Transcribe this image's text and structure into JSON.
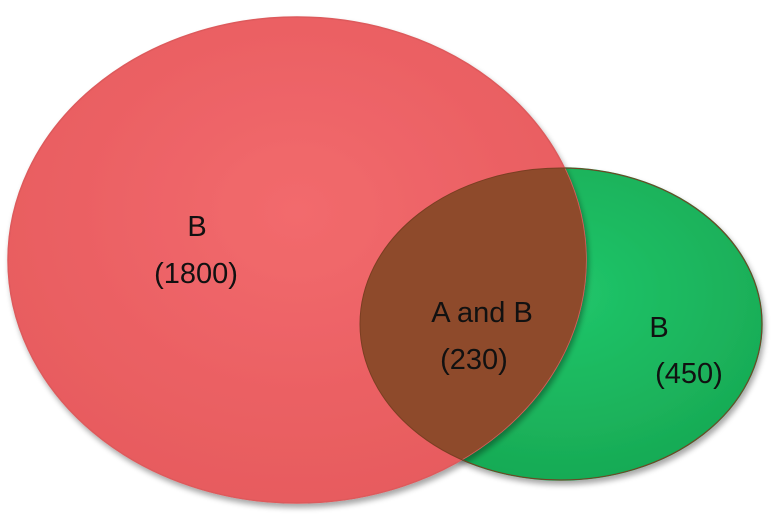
{
  "diagram": {
    "type": "venn",
    "regions": [
      {
        "id": "left",
        "name": "B",
        "count": "(1800)"
      },
      {
        "id": "overlap",
        "name": "A and B",
        "count": "(230)"
      },
      {
        "id": "right",
        "name": "B",
        "count": "(450)"
      }
    ],
    "colors": {
      "left": "#ef6467",
      "right": "#1dbb62",
      "overlap": "#8e4a2b",
      "label_text": "#111111"
    }
  }
}
